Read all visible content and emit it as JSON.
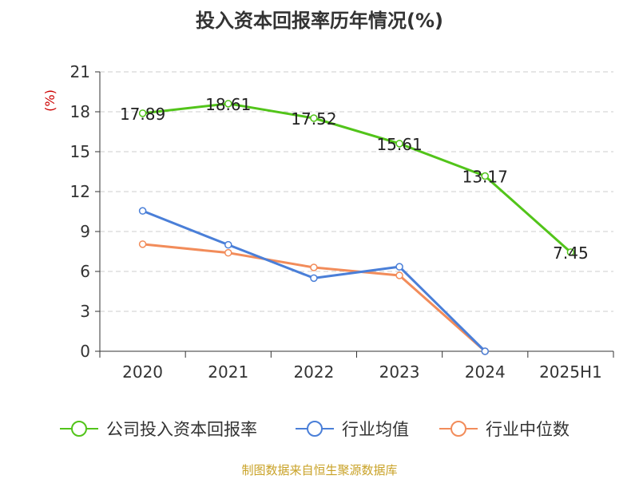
{
  "chart_data": {
    "type": "line",
    "title": "投入资本回报率历年情况(%)",
    "ylabel": "(%)",
    "xlabel": "",
    "categories": [
      "2020",
      "2021",
      "2022",
      "2023",
      "2024",
      "2025H1"
    ],
    "ylim": [
      0,
      21
    ],
    "yticks": [
      "0",
      "3",
      "6",
      "9",
      "12",
      "15",
      "18",
      "21"
    ],
    "grid": "horizontal-dashed",
    "legend_position": "bottom",
    "series": [
      {
        "name": "公司投入资本回报率",
        "color": "#52c41a",
        "values": [
          17.89,
          18.61,
          17.52,
          15.61,
          13.17,
          7.45
        ],
        "labels": [
          "17.89",
          "18.61",
          "17.52",
          "15.61",
          "13.17",
          "7.45"
        ]
      },
      {
        "name": "行业均值",
        "color": "#4a7fd8",
        "values": [
          10.55,
          8.0,
          5.5,
          6.35,
          0,
          null
        ]
      },
      {
        "name": "行业中位数",
        "color": "#f28c5a",
        "values": [
          8.05,
          7.4,
          6.3,
          5.7,
          0,
          null
        ]
      }
    ]
  },
  "source_note": "制图数据来自恒生聚源数据库"
}
